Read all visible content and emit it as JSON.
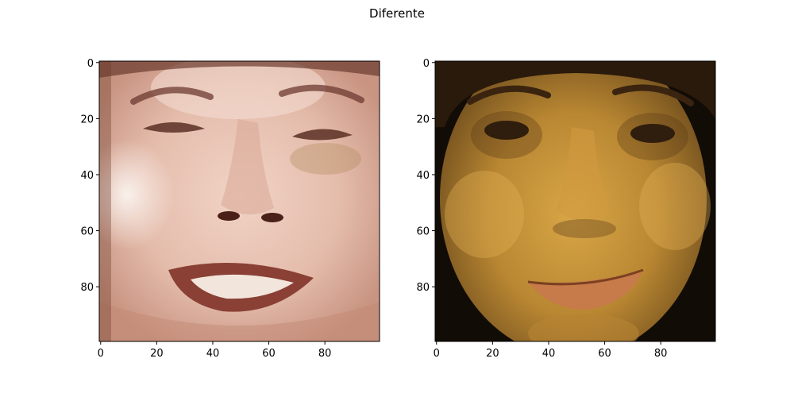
{
  "chart_data": {
    "type": "image-pair",
    "title": "Diferente",
    "panels": [
      {
        "name": "left-face",
        "description_kind": "face-photo",
        "xlim": [
          0,
          100
        ],
        "ylim": [
          100,
          0
        ],
        "xticks": [
          0,
          20,
          40,
          60,
          80
        ],
        "yticks": [
          0,
          20,
          40,
          60,
          80
        ],
        "palette": {
          "bg": "#e8c8bc",
          "skin": "#e9c5b6",
          "shade": "#c98f7a",
          "dark": "#5a2f25",
          "hair": "#4a2a20",
          "lip": "#8a4035",
          "teeth": "#f2e6dc",
          "highlight": "#f7ece6"
        }
      },
      {
        "name": "right-face",
        "description_kind": "face-photo",
        "xlim": [
          0,
          100
        ],
        "ylim": [
          100,
          0
        ],
        "xticks": [
          0,
          20,
          40,
          60,
          80
        ],
        "yticks": [
          0,
          20,
          40,
          60,
          80
        ],
        "palette": {
          "bg": "#120c06",
          "skin": "#c59436",
          "shade": "#7a5524",
          "dark": "#1a1008",
          "hair": "#2a1a0c",
          "lip": "#c77a4a",
          "teeth": "#d8a060",
          "highlight": "#e2b052"
        }
      }
    ]
  }
}
